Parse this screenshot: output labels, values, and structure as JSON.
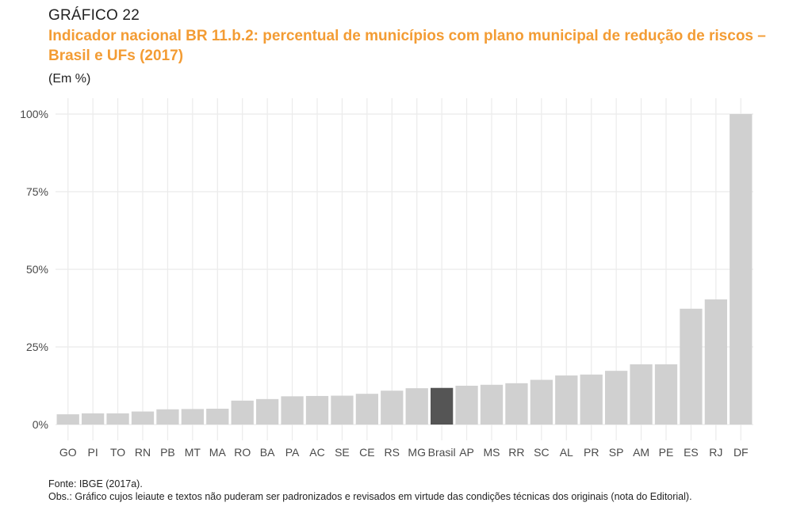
{
  "figure": {
    "number": "GRÁFICO 22",
    "title": "Indicador nacional BR 11.b.2: percentual de municípios com plano municipal de redução de riscos – Brasil e UFs (2017)",
    "unit": "(Em %)"
  },
  "footer": {
    "source": "Fonte: IBGE (2017a).",
    "note": "Obs.: Gráfico cujos leiaute e textos não puderam ser padronizados e revisados em virtude das condições técnicas dos originais (nota do Editorial)."
  },
  "colors": {
    "bar": "#d0d0d0",
    "highlight": "#555555",
    "grid": "#ebebeb",
    "title": "#f39c34"
  },
  "chart_data": {
    "type": "bar",
    "categories": [
      "GO",
      "PI",
      "TO",
      "RN",
      "PB",
      "MT",
      "MA",
      "RO",
      "BA",
      "PA",
      "AC",
      "SE",
      "CE",
      "RS",
      "MG",
      "Brasil",
      "AP",
      "MS",
      "RR",
      "SC",
      "AL",
      "PR",
      "SP",
      "AM",
      "PE",
      "ES",
      "RJ",
      "DF"
    ],
    "values": [
      3.3,
      3.6,
      3.6,
      4.2,
      4.9,
      5.0,
      5.1,
      7.7,
      8.2,
      9.1,
      9.2,
      9.3,
      9.9,
      10.9,
      11.7,
      11.8,
      12.5,
      12.8,
      13.3,
      14.4,
      15.8,
      16.1,
      17.3,
      19.4,
      19.4,
      37.3,
      40.3,
      100
    ],
    "highlight": "Brasil",
    "ylim": [
      0,
      100
    ],
    "yticks": [
      0,
      25,
      50,
      75,
      100
    ],
    "ytick_labels": [
      "0%",
      "25%",
      "50%",
      "75%",
      "100%"
    ],
    "grid": true,
    "legend": "none",
    "xlabel": "",
    "ylabel": ""
  }
}
